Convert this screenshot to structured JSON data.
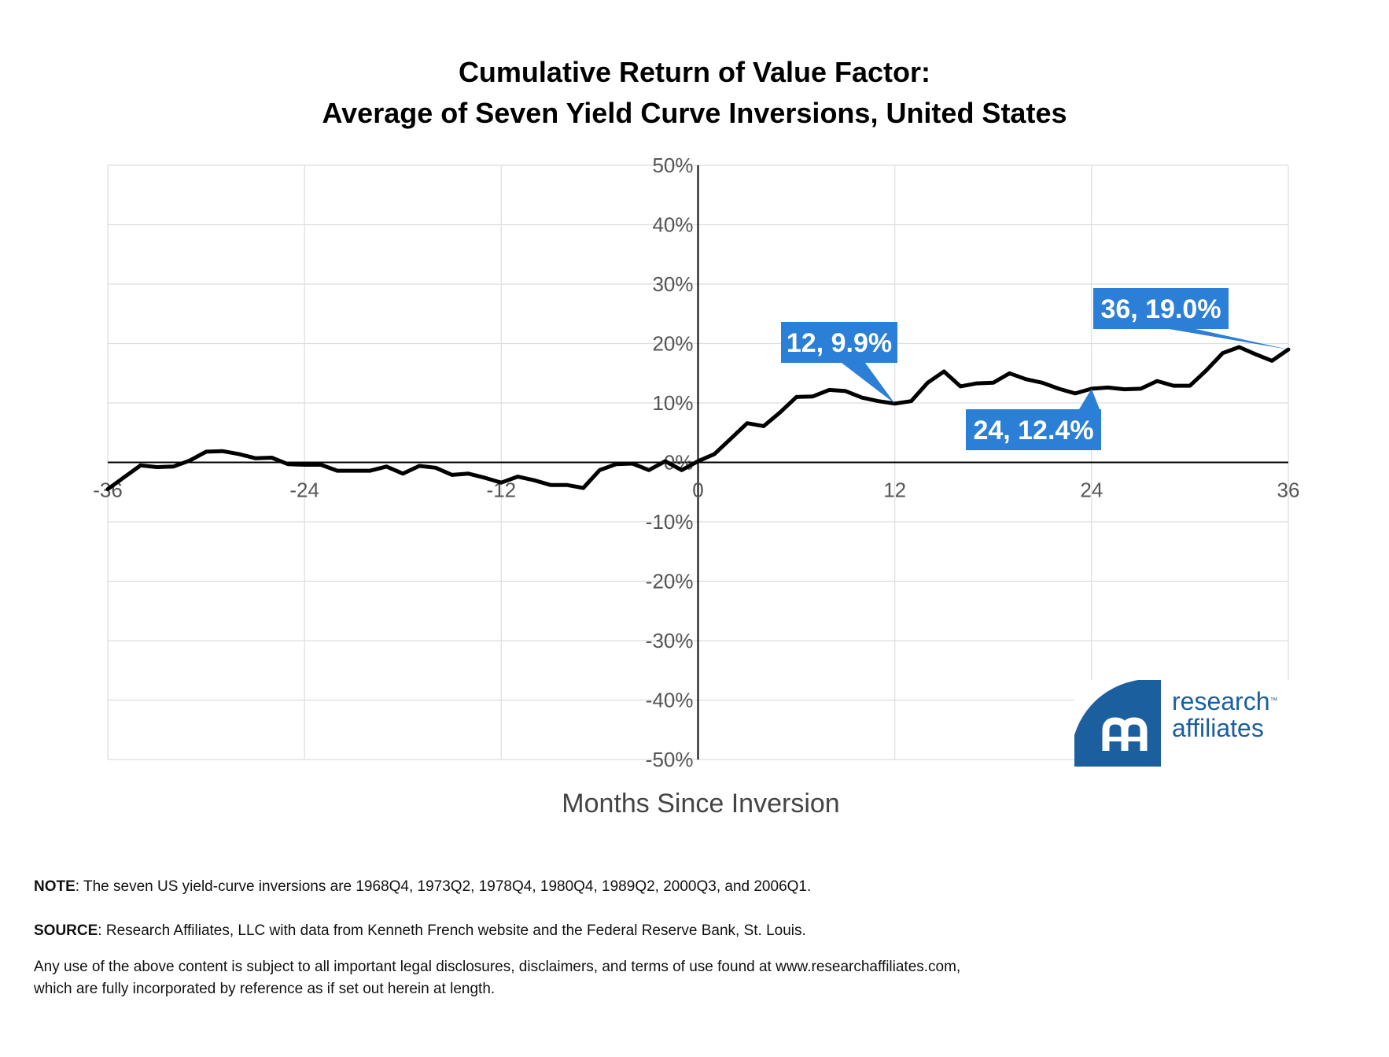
{
  "chart_data": {
    "type": "line",
    "title_lines": [
      "Cumulative Return of Value Factor:",
      "Average of Seven Yield Curve Inversions, United States"
    ],
    "xlabel": "Months Since Inversion",
    "ylabel": "",
    "xlim": [
      -36,
      36
    ],
    "ylim": [
      -50,
      50
    ],
    "x_ticks": [
      "-36",
      "-24",
      "-12",
      "0",
      "12",
      "24",
      "36"
    ],
    "x_tick_values": [
      -36,
      -24,
      -12,
      0,
      12,
      24,
      36
    ],
    "y_ticks": [
      "50%",
      "40%",
      "30%",
      "20%",
      "10%",
      "0%",
      "-10%",
      "-20%",
      "-30%",
      "-40%",
      "-50%"
    ],
    "y_tick_values": [
      50,
      40,
      30,
      20,
      10,
      0,
      -10,
      -20,
      -30,
      -40,
      -50
    ],
    "grid": true,
    "line_color": "#000000",
    "callout_color": "#2b7fd6",
    "x": [
      -36,
      -35,
      -34,
      -33,
      -32,
      -31,
      -30,
      -29,
      -28,
      -27,
      -26,
      -25,
      -24,
      -23,
      -22,
      -21,
      -20,
      -19,
      -18,
      -17,
      -16,
      -15,
      -14,
      -13,
      -12,
      -11,
      -10,
      -9,
      -8,
      -7,
      -6,
      -5,
      -4,
      -3,
      -2,
      -1,
      0,
      1,
      2,
      3,
      4,
      5,
      6,
      7,
      8,
      9,
      10,
      11,
      12,
      13,
      14,
      15,
      16,
      17,
      18,
      19,
      20,
      21,
      22,
      23,
      24,
      25,
      26,
      27,
      28,
      29,
      30,
      31,
      32,
      33,
      34,
      35,
      36
    ],
    "values": [
      -4.5,
      -2.5,
      -0.5,
      -0.8,
      -0.7,
      0.3,
      1.8,
      1.9,
      1.4,
      0.7,
      0.8,
      -0.3,
      -0.4,
      -0.4,
      -1.4,
      -1.4,
      -1.4,
      -0.7,
      -1.9,
      -0.6,
      -0.9,
      -2.1,
      -1.9,
      -2.6,
      -3.4,
      -2.4,
      -3.0,
      -3.8,
      -3.8,
      -4.3,
      -1.3,
      -0.3,
      -0.2,
      -1.3,
      0.2,
      -1.3,
      0.2,
      1.4,
      4.0,
      6.6,
      6.1,
      8.4,
      11.0,
      11.1,
      12.2,
      12.0,
      10.9,
      10.3,
      9.9,
      10.3,
      13.4,
      15.3,
      12.8,
      13.3,
      13.4,
      15.0,
      14.0,
      13.4,
      12.4,
      11.6,
      12.4,
      12.6,
      12.3,
      12.4,
      13.7,
      12.9,
      12.9,
      15.5,
      18.4,
      19.4,
      18.2,
      17.1,
      19.0
    ],
    "callouts": [
      {
        "label": "12, 9.9%",
        "x": 12,
        "y": 9.9
      },
      {
        "label": "24, 12.4%",
        "x": 24,
        "y": 12.4
      },
      {
        "label": "36, 19.0%",
        "x": 36,
        "y": 19.0
      }
    ]
  },
  "footnotes": {
    "note_label": "NOTE",
    "note_text": ": The seven US yield-curve inversions are 1968Q4, 1973Q2, 1978Q4, 1980Q4, 1989Q2, 2000Q3, and 2006Q1.",
    "source_label": "SOURCE",
    "source_text": ": Research Affiliates, LLC with data from Kenneth French website and the Federal Reserve Bank, St. Louis.",
    "disclaimer_line1": "Any use of the above content is subject to all important legal disclosures, disclaimers, and terms of use found at www.researchaffiliates.com,",
    "disclaimer_line2": "which are fully incorporated by reference as if set out herein at length."
  },
  "logo": {
    "line1": "research",
    "line2": "affiliates",
    "trademark": "™",
    "color": "#1b5f9e"
  }
}
